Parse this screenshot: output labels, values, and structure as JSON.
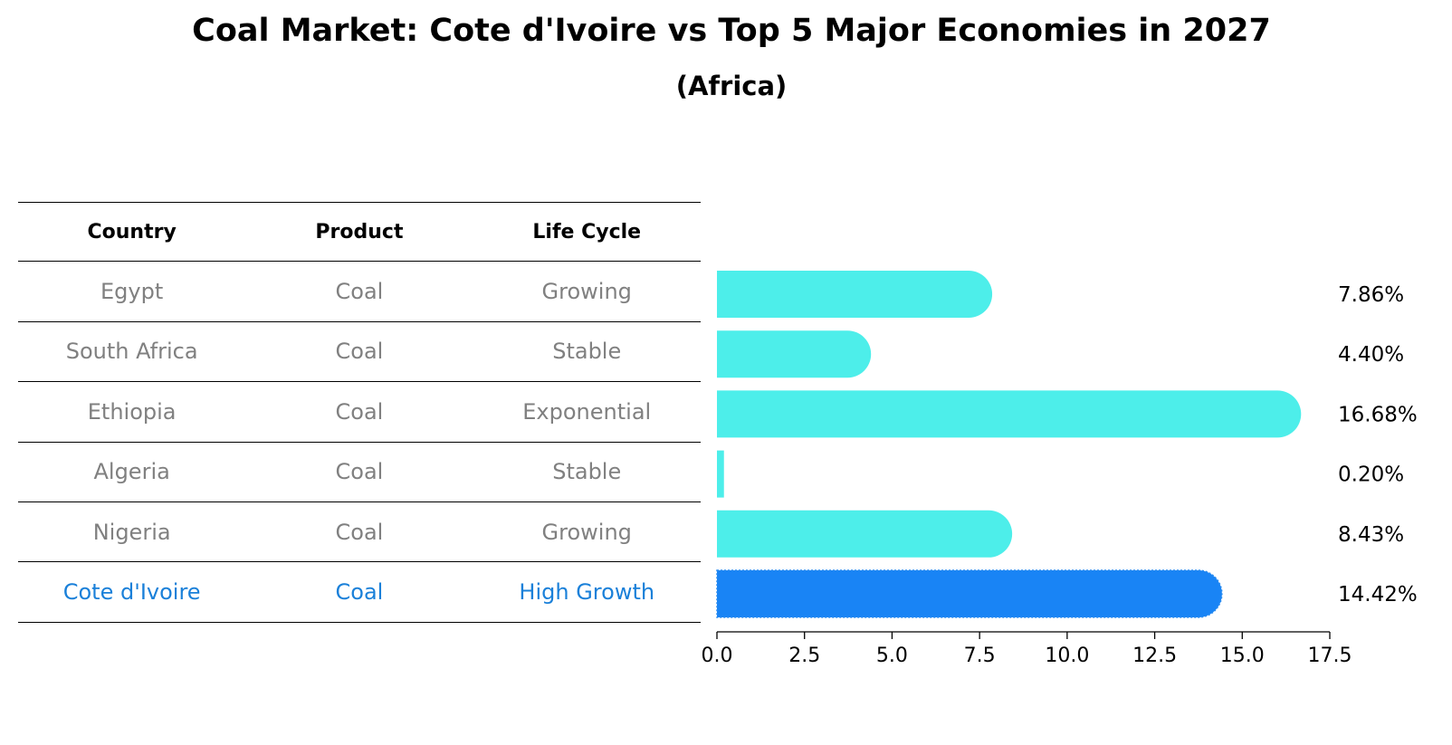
{
  "title": "Coal Market: Cote d'Ivoire vs Top 5 Major Economies in 2027",
  "subtitle": "(Africa)",
  "table": {
    "headers": [
      "Country",
      "Product",
      "Life Cycle"
    ],
    "rows": [
      {
        "country": "Egypt",
        "product": "Coal",
        "life_cycle": "Growing"
      },
      {
        "country": "South Africa",
        "product": "Coal",
        "life_cycle": "Stable"
      },
      {
        "country": "Ethiopia",
        "product": "Coal",
        "life_cycle": "Exponential"
      },
      {
        "country": "Algeria",
        "product": "Coal",
        "life_cycle": "Stable"
      },
      {
        "country": "Nigeria",
        "product": "Coal",
        "life_cycle": "Growing"
      },
      {
        "country": "Cote d'Ivoire",
        "product": "Coal",
        "life_cycle": "High Growth"
      }
    ]
  },
  "chart_data": {
    "type": "bar",
    "orientation": "horizontal",
    "title": "Coal Market: Cote d'Ivoire vs Top 5 Major Economies in 2027",
    "subtitle": "(Africa)",
    "categories": [
      "Egypt",
      "South Africa",
      "Ethiopia",
      "Algeria",
      "Nigeria",
      "Cote d'Ivoire"
    ],
    "values": [
      7.86,
      4.4,
      16.68,
      0.2,
      8.43,
      14.42
    ],
    "value_labels": [
      "7.86%",
      "4.40%",
      "16.68%",
      "0.20%",
      "8.43%",
      "14.42%"
    ],
    "highlight": "Cote d'Ivoire",
    "xlim": [
      0,
      17.5
    ],
    "xticks": [
      "0.0",
      "2.5",
      "5.0",
      "7.5",
      "10.0",
      "12.5",
      "15.0",
      "17.5"
    ],
    "xtick_values": [
      0,
      2.5,
      5,
      7.5,
      10,
      12.5,
      15,
      17.5
    ],
    "colors": {
      "default": "#4deeea",
      "highlight": "#1984f5"
    },
    "xlabel": "",
    "ylabel": ""
  }
}
